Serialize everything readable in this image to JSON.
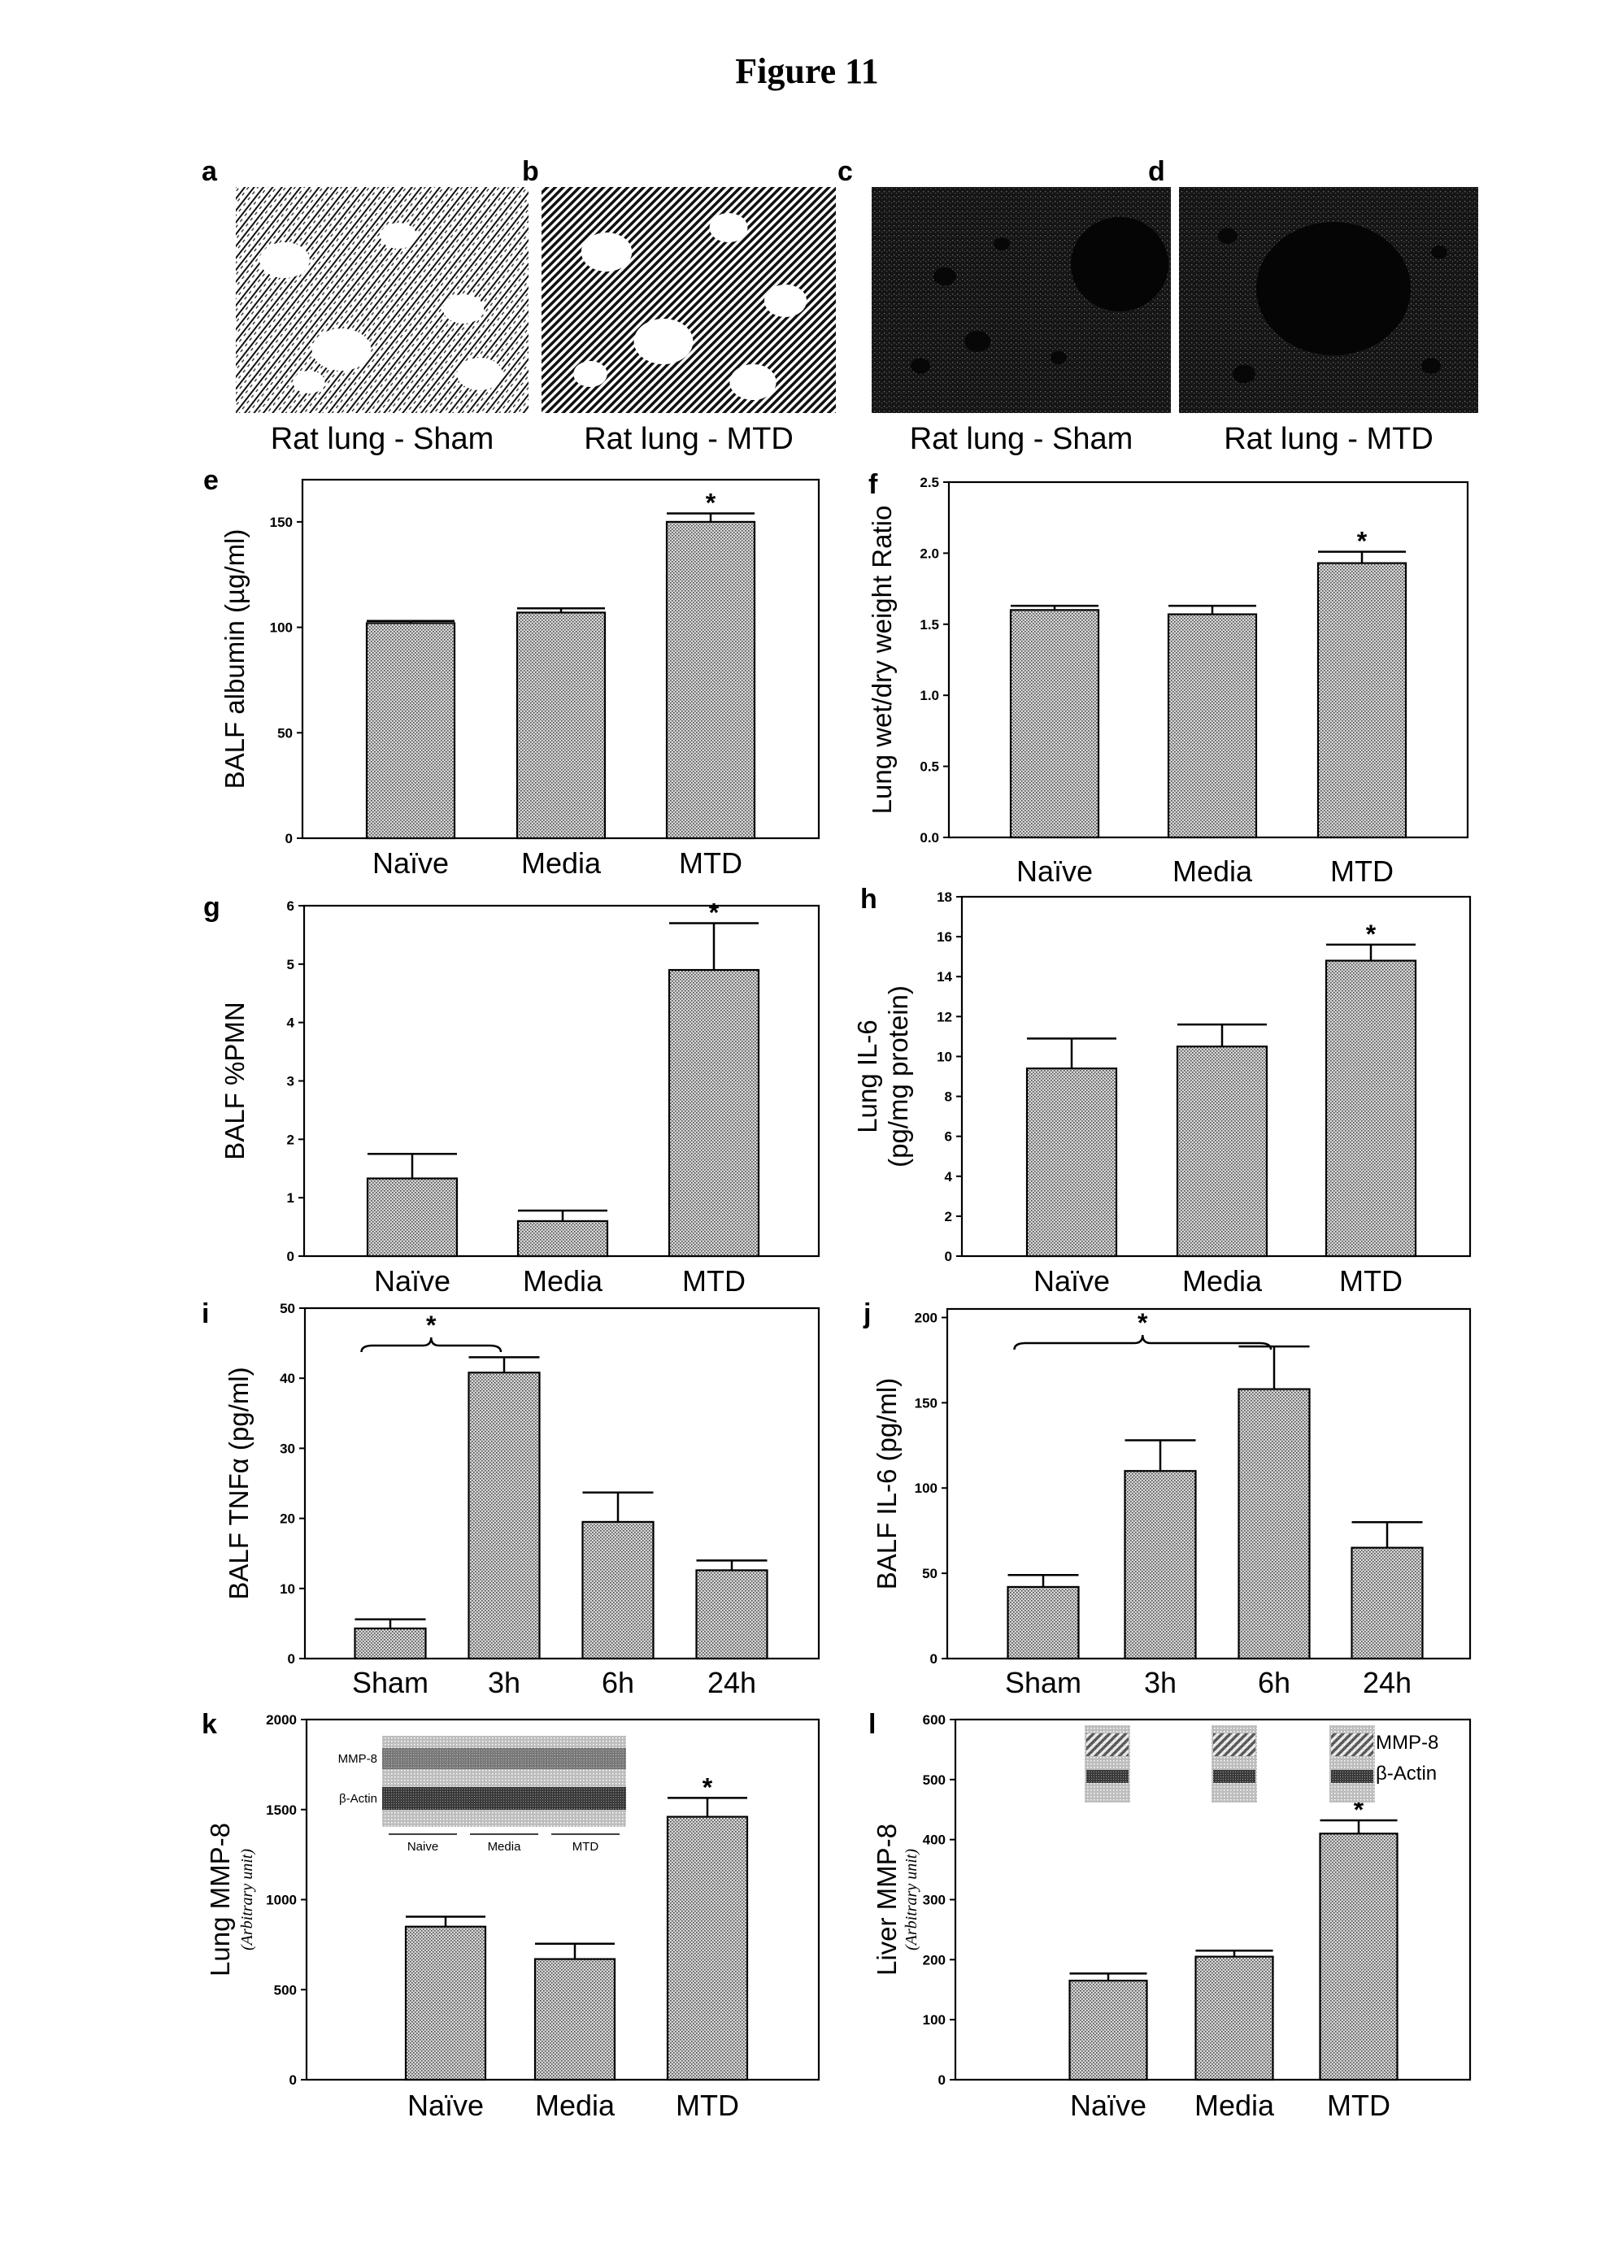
{
  "figure_title": "Figure 11",
  "colors": {
    "bar_fill": "#d4d4d4",
    "bar_dot": "#4a4a4a",
    "axis": "#000000",
    "dark_tissue": "#141414"
  },
  "image_panels": [
    {
      "letter": "a",
      "caption": "Rat lung - Sham",
      "style": "light"
    },
    {
      "letter": "b",
      "caption": "Rat lung - MTD",
      "style": "hatched"
    },
    {
      "letter": "c",
      "caption": "Rat lung - Sham",
      "style": "dark"
    },
    {
      "letter": "d",
      "caption": "Rat lung - MTD",
      "style": "dark"
    }
  ],
  "chart_data": [
    {
      "id": "e",
      "letter": "e",
      "type": "bar",
      "ylabel": "BALF albumin (µg/ml)",
      "ylabel_sub": "",
      "categories": [
        "Naïve",
        "Media",
        "MTD"
      ],
      "values": [
        102,
        107,
        150
      ],
      "errors": [
        1,
        2,
        4
      ],
      "ylim": [
        0,
        170
      ],
      "yticks": [
        0,
        50,
        100,
        150
      ],
      "tick_labels": [
        "0",
        "50",
        "100",
        "150"
      ],
      "significant": [
        2
      ],
      "bracket": null
    },
    {
      "id": "f",
      "letter": "f",
      "type": "bar",
      "ylabel": "Lung wet/dry weight Ratio",
      "ylabel_sub": "",
      "categories": [
        "Naïve",
        "Media",
        "MTD"
      ],
      "values": [
        1.6,
        1.57,
        1.93
      ],
      "errors": [
        0.03,
        0.06,
        0.08
      ],
      "ylim": [
        0,
        2.5
      ],
      "yticks": [
        0,
        0.5,
        1,
        1.5,
        2,
        2.5
      ],
      "tick_labels": [
        "0.0",
        "0.5",
        "1.0",
        "1.5",
        "2.0",
        "2.5"
      ],
      "significant": [
        2
      ],
      "bracket": null
    },
    {
      "id": "g",
      "letter": "g",
      "type": "bar",
      "ylabel": "BALF %PMN",
      "ylabel_sub": "",
      "categories": [
        "Naïve",
        "Media",
        "MTD"
      ],
      "values": [
        1.33,
        0.6,
        4.9
      ],
      "errors": [
        0.42,
        0.18,
        0.8
      ],
      "ylim": [
        0,
        6
      ],
      "yticks": [
        0,
        1,
        2,
        3,
        4,
        5,
        6
      ],
      "tick_labels": [
        "0",
        "1",
        "2",
        "3",
        "4",
        "5",
        "6"
      ],
      "significant": [
        2
      ],
      "bracket": null
    },
    {
      "id": "h",
      "letter": "h",
      "type": "bar",
      "ylabel": "Lung IL-6",
      "ylabel_sub": "(pg/mg protein)",
      "categories": [
        "Naïve",
        "Media",
        "MTD"
      ],
      "values": [
        9.4,
        10.5,
        14.8
      ],
      "errors": [
        1.5,
        1.1,
        0.8
      ],
      "ylim": [
        0,
        18
      ],
      "yticks": [
        0,
        2,
        4,
        6,
        8,
        10,
        12,
        14,
        16,
        18
      ],
      "tick_labels": [
        "0",
        "2",
        "4",
        "6",
        "8",
        "10",
        "12",
        "14",
        "16",
        "18"
      ],
      "significant": [
        2
      ],
      "bracket": null
    },
    {
      "id": "i",
      "letter": "i",
      "type": "bar",
      "ylabel": "BALF TNFα (pg/ml)",
      "ylabel_sub": "",
      "categories": [
        "Sham",
        "3h",
        "6h",
        "24h"
      ],
      "values": [
        4.3,
        40.8,
        19.5,
        12.6
      ],
      "errors": [
        1.3,
        2.2,
        4.2,
        1.4
      ],
      "ylim": [
        0,
        50
      ],
      "yticks": [
        0,
        10,
        20,
        30,
        40,
        50
      ],
      "tick_labels": [
        "0",
        "10",
        "20",
        "30",
        "40",
        "50"
      ],
      "significant": [],
      "bracket": [
        0,
        1
      ]
    },
    {
      "id": "j",
      "letter": "j",
      "type": "bar",
      "ylabel": "BALF IL-6 (pg/ml)",
      "ylabel_sub": "",
      "categories": [
        "Sham",
        "3h",
        "6h",
        "24h"
      ],
      "values": [
        42,
        110,
        158,
        65
      ],
      "errors": [
        7,
        18,
        25,
        15
      ],
      "ylim": [
        0,
        205
      ],
      "yticks": [
        0,
        50,
        100,
        150,
        200
      ],
      "tick_labels": [
        "0",
        "50",
        "100",
        "150",
        "200"
      ],
      "significant": [],
      "bracket": [
        0,
        2
      ]
    },
    {
      "id": "k",
      "letter": "k",
      "type": "bar",
      "ylabel": "Lung MMP-8",
      "ylabel_sub": "(Arbitrary unit)",
      "categories": [
        "Naïve",
        "Media",
        "MTD"
      ],
      "values": [
        850,
        670,
        1460
      ],
      "errors": [
        55,
        85,
        105
      ],
      "ylim": [
        0,
        2000
      ],
      "yticks": [
        0,
        500,
        1000,
        1500,
        2000
      ],
      "tick_labels": [
        "0",
        "500",
        "1000",
        "1500",
        "2000"
      ],
      "significant": [
        2
      ],
      "bracket": null,
      "blot": {
        "rows": [
          "MMP-8",
          "β-Actin"
        ],
        "groups": [
          "Naive",
          "Media",
          "MTD"
        ]
      }
    },
    {
      "id": "l",
      "letter": "l",
      "type": "bar",
      "ylabel": "Liver MMP-8",
      "ylabel_sub": "(Arbitrary unit)",
      "categories": [
        "Naïve",
        "Media",
        "MTD"
      ],
      "values": [
        165,
        205,
        410
      ],
      "errors": [
        12,
        10,
        22
      ],
      "ylim": [
        0,
        600
      ],
      "yticks": [
        0,
        100,
        200,
        300,
        400,
        500,
        600
      ],
      "tick_labels": [
        "0",
        "100",
        "200",
        "300",
        "400",
        "500",
        "600"
      ],
      "significant": [
        2
      ],
      "bracket": null,
      "blot": {
        "rows": [
          "MMP-8",
          "β-Actin"
        ],
        "groups": []
      }
    }
  ]
}
